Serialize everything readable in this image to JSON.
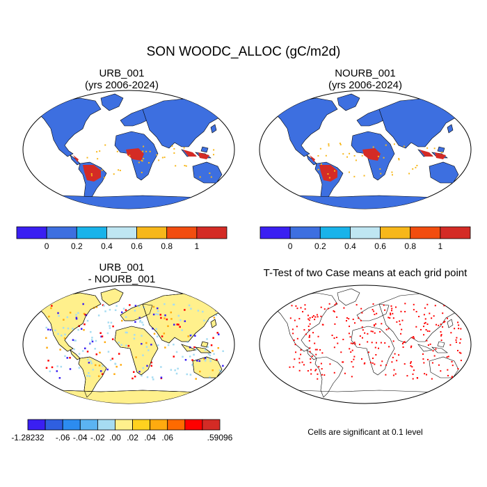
{
  "title": "SON WOODC_ALLOC (gC/m2d)",
  "panels": [
    {
      "id": "urb",
      "title_line1": "URB_001",
      "title_line2": "(yrs 2006-2024)"
    },
    {
      "id": "nourb",
      "title_line1": "NOURB_001",
      "title_line2": "(yrs 2006-2024)"
    },
    {
      "id": "diff",
      "title_line1": "URB_001",
      "title_line2": "- NOURB_001"
    },
    {
      "id": "ttest",
      "title_line1": "T-Test of two Case means at each grid point",
      "title_line2": ""
    }
  ],
  "colorbar_main": {
    "colors": [
      "#3a1ff2",
      "#3d6fe0",
      "#19b3ea",
      "#bfe6f2",
      "#f7b71a",
      "#f24d0f",
      "#d42b25"
    ],
    "labels": [
      "0",
      "0.2",
      "0.4",
      "0.6",
      "0.8",
      "1"
    ]
  },
  "colorbar_diff": {
    "colors": [
      "#3a1ff2",
      "#2f5fe0",
      "#2c8cf0",
      "#5bb4f2",
      "#a6dcf2",
      "#fff08c",
      "#ffd21f",
      "#ffab0f",
      "#ff6a00",
      "#ff0000",
      "#d42b25"
    ],
    "labels": [
      "-1.28232",
      "-.06",
      "-.04",
      "-.02",
      ".00",
      ".02",
      ".04",
      ".06",
      ".59096"
    ]
  },
  "significance_note": "Cells are significant at 0.1 level",
  "map_colors": {
    "ocean": "#ffffff",
    "main_land": "#3d6fe0",
    "main_high": "#d42b25",
    "main_mid": "#f7b71a",
    "diff_land": "#fff08c",
    "diff_neg": "#a6dcf2",
    "diff_strong_neg": "#3a1ff2",
    "sig_dots": "#ff0000"
  }
}
